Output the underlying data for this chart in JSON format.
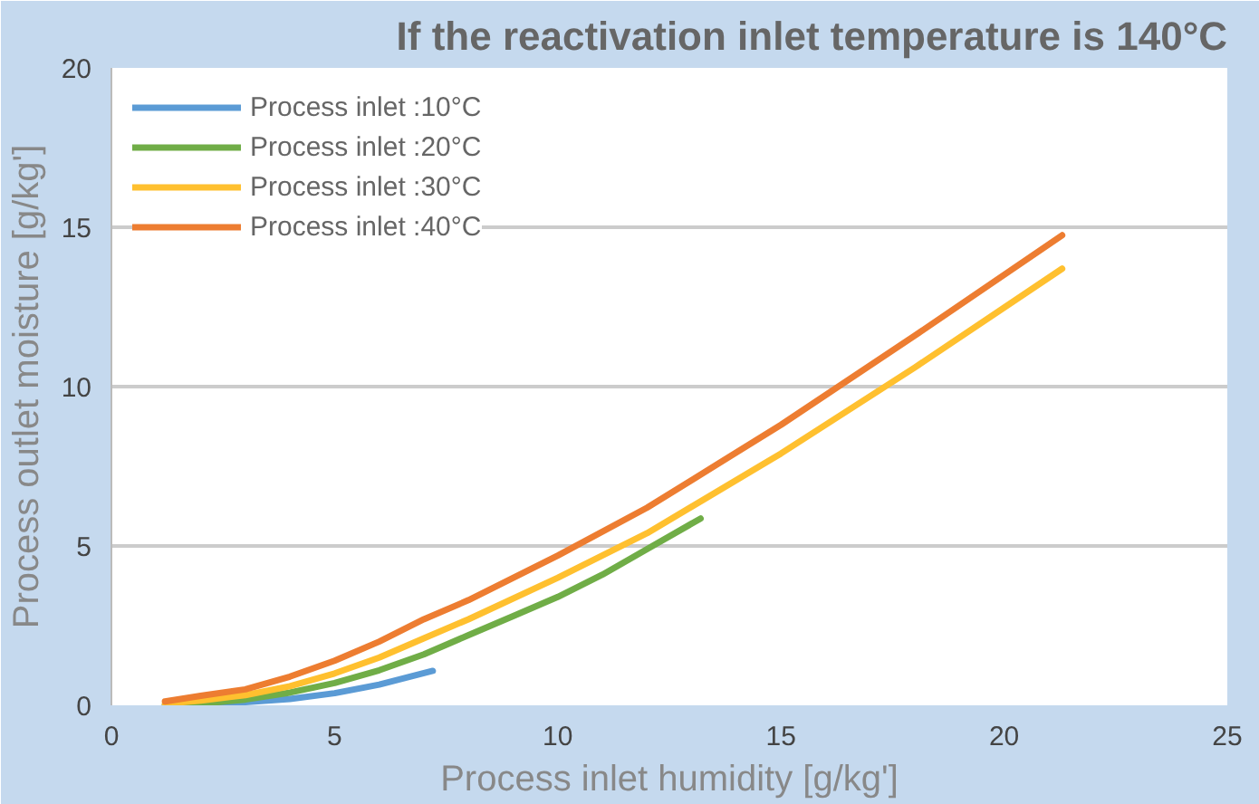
{
  "chart_data": {
    "type": "line",
    "title": "If the reactivation inlet temperature is 140°C",
    "xlabel": "Process inlet humidity [g/kg']",
    "ylabel": "Process outlet moisture [g/kg']",
    "xlim": [
      0,
      25
    ],
    "xticks": [
      0,
      5,
      10,
      15,
      20,
      25
    ],
    "ylim": [
      0,
      20
    ],
    "yticks": [
      0,
      5,
      10,
      15,
      20
    ],
    "grid": "y",
    "legend": "top left",
    "line_style": "solid",
    "marker": "none",
    "series": [
      {
        "name": "Process inlet :10°C",
        "color": "#5b9bd5",
        "x": [
          1.2,
          3,
          4,
          5,
          6,
          7.2
        ],
        "values": [
          0,
          0.1,
          0.2,
          0.38,
          0.65,
          1.08
        ]
      },
      {
        "name": "Process inlet :20°C",
        "color": "#70ad47",
        "x": [
          1.2,
          2,
          3,
          4,
          5,
          6,
          7,
          8,
          9,
          10,
          11,
          12,
          13.2
        ],
        "values": [
          0,
          0.05,
          0.18,
          0.4,
          0.7,
          1.1,
          1.6,
          2.2,
          2.8,
          3.4,
          4.1,
          4.9,
          5.86
        ]
      },
      {
        "name": "Process inlet :30°C",
        "color": "#ffc02f",
        "x": [
          1.2,
          2,
          3,
          4,
          5,
          6,
          7,
          8,
          10,
          12,
          15,
          18,
          21.3
        ],
        "values": [
          0.05,
          0.15,
          0.32,
          0.6,
          1.0,
          1.5,
          2.1,
          2.7,
          4.0,
          5.4,
          7.9,
          10.6,
          13.7
        ]
      },
      {
        "name": "Process inlet :40°C",
        "color": "#ed7d31",
        "x": [
          1.2,
          2,
          3,
          4,
          5,
          6,
          7,
          8,
          10,
          12,
          15,
          18,
          21.3
        ],
        "values": [
          0.12,
          0.3,
          0.5,
          0.9,
          1.4,
          2.0,
          2.7,
          3.3,
          4.7,
          6.2,
          8.8,
          11.6,
          14.75
        ]
      }
    ]
  }
}
